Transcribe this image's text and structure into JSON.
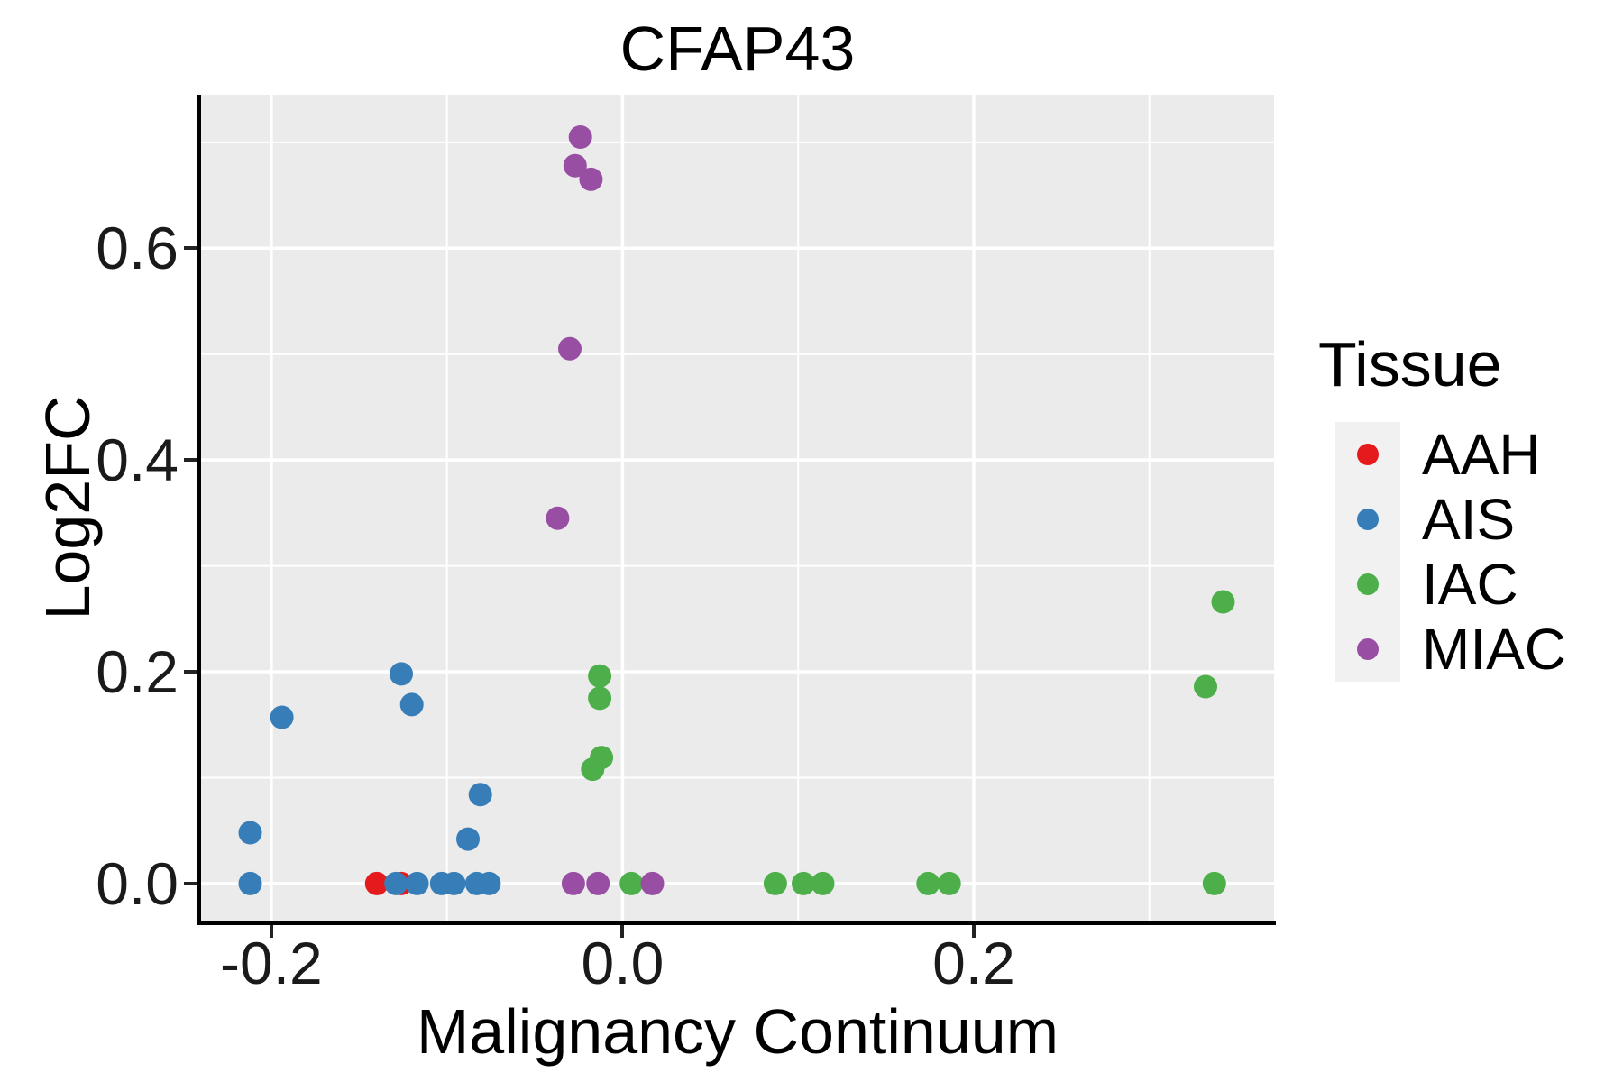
{
  "figure": {
    "title": "CFAP43"
  },
  "axes": {
    "x": {
      "title": "Malignancy Continuum"
    },
    "y": {
      "title": "Log2FC"
    }
  },
  "legend": {
    "title": "Tissue",
    "entries": [
      {
        "label": "AAH",
        "color": "#E41A1C"
      },
      {
        "label": "AIS",
        "color": "#377EB8"
      },
      {
        "label": "IAC",
        "color": "#4DAF4A"
      },
      {
        "label": "MIAC",
        "color": "#984EA3"
      }
    ]
  },
  "style": {
    "panel_bg": "#EBEBEB",
    "grid_color": "#FFFFFF",
    "axis_line_color": "#000000",
    "tick_color": "#222222",
    "legend_key_bg": "#F1F1F1"
  },
  "chart_data": {
    "type": "scatter",
    "title": "CFAP43",
    "xlabel": "Malignancy Continuum",
    "ylabel": "Log2FC",
    "xlim": [
      -0.24,
      0.371
    ],
    "ylim": [
      -0.035,
      0.745
    ],
    "grid": true,
    "legend_position": "right",
    "point_radius_px": 13,
    "x_ticks": [
      {
        "value": -0.2,
        "label": "-0.2"
      },
      {
        "value": 0.0,
        "label": "0.0"
      },
      {
        "value": 0.2,
        "label": "0.2"
      }
    ],
    "y_ticks": [
      {
        "value": 0.0,
        "label": "0.0"
      },
      {
        "value": 0.2,
        "label": "0.2"
      },
      {
        "value": 0.4,
        "label": "0.4"
      },
      {
        "value": 0.6,
        "label": "0.6"
      }
    ],
    "x_minor_gridlines": [
      -0.1,
      0.1,
      0.3
    ],
    "y_minor_gridlines": [
      0.1,
      0.3,
      0.5,
      0.7
    ],
    "series": [
      {
        "name": "AAH",
        "color": "#E41A1C",
        "points": [
          [
            -0.14,
            0.0
          ],
          [
            -0.126,
            0.0
          ]
        ]
      },
      {
        "name": "AIS",
        "color": "#377EB8",
        "points": [
          [
            -0.212,
            0.048
          ],
          [
            -0.212,
            0.0
          ],
          [
            -0.194,
            0.157
          ],
          [
            -0.126,
            0.198
          ],
          [
            -0.12,
            0.169
          ],
          [
            -0.129,
            0.0
          ],
          [
            -0.117,
            0.0
          ],
          [
            -0.103,
            0.0
          ],
          [
            -0.096,
            0.0
          ],
          [
            -0.088,
            0.042
          ],
          [
            -0.083,
            0.0
          ],
          [
            -0.081,
            0.084
          ],
          [
            -0.076,
            0.0
          ]
        ]
      },
      {
        "name": "IAC",
        "color": "#4DAF4A",
        "points": [
          [
            -0.013,
            0.196
          ],
          [
            -0.013,
            0.175
          ],
          [
            -0.012,
            0.119
          ],
          [
            -0.017,
            0.108
          ],
          [
            0.005,
            0.0
          ],
          [
            0.087,
            0.0
          ],
          [
            0.103,
            0.0
          ],
          [
            0.114,
            0.0
          ],
          [
            0.174,
            0.0
          ],
          [
            0.186,
            0.0
          ],
          [
            0.332,
            0.186
          ],
          [
            0.337,
            0.0
          ],
          [
            0.342,
            0.266
          ]
        ]
      },
      {
        "name": "MIAC",
        "color": "#984EA3",
        "points": [
          [
            -0.024,
            0.705
          ],
          [
            -0.027,
            0.678
          ],
          [
            -0.018,
            0.665
          ],
          [
            -0.03,
            0.505
          ],
          [
            -0.037,
            0.345
          ],
          [
            -0.028,
            0.0
          ],
          [
            -0.014,
            0.0
          ],
          [
            0.017,
            0.0
          ]
        ]
      }
    ]
  }
}
